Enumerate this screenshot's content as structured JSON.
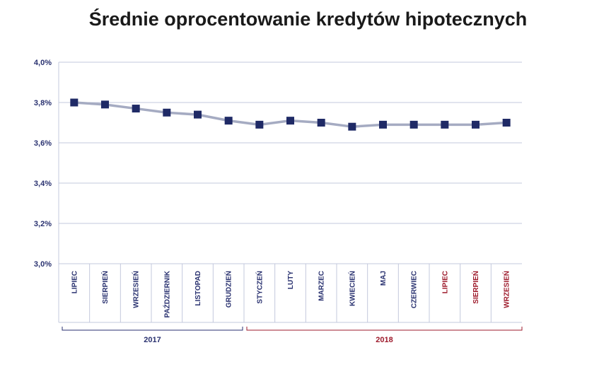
{
  "chart_data": {
    "type": "line",
    "title": "Średnie oprocentowanie kredytów hipotecznych",
    "categories": [
      "LIPIEC",
      "SIERPIEŃ",
      "WRZESIEŃ",
      "PAŹDZIERNIK",
      "LISTOPAD",
      "GRUDZIEŃ",
      "STYCZEŃ",
      "LUTY",
      "MARZEC",
      "KWIECIEŃ",
      "MAJ",
      "CZERWIEC",
      "LIPIEC",
      "SIERPIEŃ",
      "WRZESIEŃ"
    ],
    "values": [
      3.8,
      3.79,
      3.77,
      3.75,
      3.74,
      3.71,
      3.69,
      3.71,
      3.7,
      3.68,
      3.69,
      3.69,
      3.69,
      3.69,
      3.7
    ],
    "category_years": [
      "2017",
      "2017",
      "2017",
      "2017",
      "2017",
      "2017",
      "2018",
      "2018",
      "2018",
      "2018",
      "2018",
      "2018",
      "2018",
      "2018",
      "2018"
    ],
    "year_groups": [
      {
        "label": "2017",
        "start": 0,
        "end": 5
      },
      {
        "label": "2018",
        "start": 6,
        "end": 14
      }
    ],
    "ylim": [
      3.0,
      4.0
    ],
    "yticks": [
      3.0,
      3.2,
      3.4,
      3.6,
      3.8,
      4.0
    ],
    "ytick_labels": [
      "3,0%",
      "3,2%",
      "3,4%",
      "3,6%",
      "3,8%",
      "4,0%"
    ],
    "highlight_from_index": 12,
    "grid": true,
    "colors": {
      "line": "#a5abc2",
      "marker": "#1f2a66",
      "grid": "#c3c8dc",
      "label_default": "#2a3270",
      "label_highlight": "#9e1b2c",
      "year_2017": "#2a3270",
      "year_2018": "#9e1b2c"
    }
  }
}
